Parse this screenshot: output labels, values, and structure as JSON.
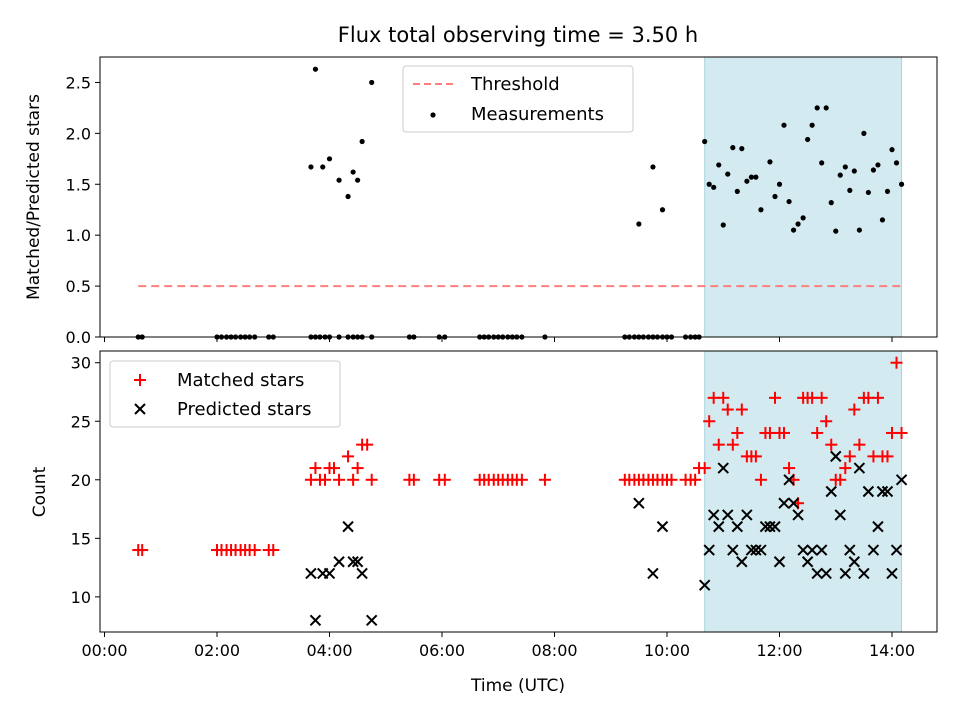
{
  "chart_data": [
    {
      "type": "scatter",
      "title": "Flux total observing time = 3.50 h",
      "xlabel": "",
      "ylabel": "Matched/Predicted stars",
      "xlim": [
        -0.08,
        14.8
      ],
      "ylim": [
        0,
        2.75
      ],
      "yticks": [
        0.0,
        0.5,
        1.0,
        1.5,
        2.0,
        2.5
      ],
      "ytick_labels": [
        "0.0",
        "0.5",
        "1.0",
        "1.5",
        "2.0",
        "2.5"
      ],
      "shaded_span": [
        10.67,
        14.17
      ],
      "shade_color": "#d3ebf0",
      "legend_loc": "upper-center",
      "series": [
        {
          "name": "Threshold",
          "kind": "dashed-line",
          "color": "#ff7f7f",
          "x": [
            0.6,
            14.17
          ],
          "y": [
            0.5,
            0.5
          ]
        },
        {
          "name": "Measurements",
          "kind": "dot",
          "color": "#000000",
          "x": [
            0.6,
            0.67,
            2.0,
            2.08,
            2.17,
            2.25,
            2.33,
            2.42,
            2.5,
            2.58,
            2.67,
            2.92,
            3.0,
            3.67,
            3.75,
            3.83,
            3.92,
            4.0,
            4.17,
            4.33,
            4.42,
            4.5,
            4.58,
            4.75,
            5.42,
            5.5,
            5.95,
            6.05,
            6.67,
            6.75,
            6.83,
            6.92,
            7.0,
            7.08,
            7.17,
            7.25,
            7.33,
            7.42,
            7.83,
            9.25,
            9.33,
            9.42,
            9.5,
            9.58,
            9.67,
            9.75,
            9.83,
            9.92,
            10.0,
            10.08,
            10.33,
            10.42,
            10.5,
            10.57,
            3.67,
            3.75,
            3.88,
            4.0,
            4.17,
            4.33,
            4.42,
            4.5,
            4.58,
            4.75,
            9.5,
            9.75,
            9.92,
            10.67,
            10.75,
            10.83,
            10.92,
            11.0,
            11.08,
            11.17,
            11.25,
            11.33,
            11.42,
            11.5,
            11.58,
            11.67,
            11.83,
            11.92,
            12.0,
            12.08,
            12.17,
            12.25,
            12.33,
            12.42,
            12.5,
            12.58,
            12.67,
            12.75,
            12.83,
            12.92,
            13.0,
            13.08,
            13.17,
            13.25,
            13.33,
            13.42,
            13.5,
            13.58,
            13.67,
            13.75,
            13.83,
            13.92,
            14.0,
            14.08,
            14.17
          ],
          "y": [
            0,
            0,
            0,
            0,
            0,
            0,
            0,
            0,
            0,
            0,
            0,
            0,
            0,
            0,
            0,
            0,
            0,
            0,
            0,
            0,
            0,
            0,
            0,
            0,
            0,
            0,
            0,
            0,
            0,
            0,
            0,
            0,
            0,
            0,
            0,
            0,
            0,
            0,
            0,
            0,
            0,
            0,
            0,
            0,
            0,
            0,
            0,
            0,
            0,
            0,
            0,
            0,
            0,
            0,
            1.67,
            2.63,
            1.67,
            1.75,
            1.54,
            1.38,
            1.62,
            1.54,
            1.92,
            2.5,
            1.11,
            1.67,
            1.25,
            1.92,
            1.5,
            1.47,
            1.69,
            1.1,
            1.6,
            1.86,
            1.43,
            1.85,
            1.53,
            1.57,
            1.57,
            1.25,
            1.72,
            1.38,
            1.5,
            2.08,
            1.33,
            1.05,
            1.11,
            1.17,
            1.94,
            2.08,
            2.25,
            1.71,
            2.25,
            1.32,
            1.04,
            1.59,
            1.67,
            1.44,
            1.63,
            1.05,
            2.0,
            1.42,
            1.64,
            1.69,
            1.15,
            1.43,
            1.84,
            1.71,
            1.5
          ]
        }
      ]
    },
    {
      "type": "scatter",
      "title": "",
      "xlabel": "Time (UTC)",
      "ylabel": "Count",
      "xlim": [
        -0.08,
        14.8
      ],
      "ylim": [
        7,
        31
      ],
      "yticks": [
        10,
        15,
        20,
        25,
        30
      ],
      "ytick_labels": [
        "10",
        "15",
        "20",
        "25",
        "30"
      ],
      "xticks": [
        0,
        2,
        4,
        6,
        8,
        10,
        12,
        14
      ],
      "xtick_labels": [
        "00:00",
        "02:00",
        "04:00",
        "06:00",
        "08:00",
        "10:00",
        "12:00",
        "14:00"
      ],
      "shaded_span": [
        10.67,
        14.17
      ],
      "shade_color": "#d3ebf0",
      "legend_loc": "upper-left",
      "series": [
        {
          "name": "Matched stars",
          "kind": "plus",
          "color": "#ff0000",
          "x": [
            0.6,
            0.67,
            2.0,
            2.08,
            2.17,
            2.25,
            2.33,
            2.42,
            2.5,
            2.58,
            2.67,
            2.92,
            3.0,
            3.67,
            3.75,
            3.83,
            3.92,
            4.0,
            4.08,
            4.17,
            4.33,
            4.42,
            4.5,
            4.58,
            4.67,
            4.75,
            5.42,
            5.5,
            5.95,
            6.05,
            6.67,
            6.75,
            6.83,
            6.92,
            7.0,
            7.08,
            7.17,
            7.25,
            7.33,
            7.42,
            7.83,
            9.25,
            9.33,
            9.42,
            9.5,
            9.58,
            9.67,
            9.75,
            9.83,
            9.92,
            10.0,
            10.08,
            10.33,
            10.42,
            10.5,
            10.57,
            10.67,
            10.75,
            10.83,
            10.92,
            11.0,
            11.08,
            11.17,
            11.25,
            11.33,
            11.42,
            11.5,
            11.58,
            11.67,
            11.75,
            11.83,
            11.92,
            12.0,
            12.08,
            12.17,
            12.25,
            12.33,
            12.42,
            12.5,
            12.58,
            12.67,
            12.75,
            12.83,
            12.92,
            13.0,
            13.08,
            13.17,
            13.25,
            13.33,
            13.42,
            13.5,
            13.58,
            13.67,
            13.75,
            13.83,
            13.92,
            14.0,
            14.08,
            14.17
          ],
          "y": [
            14,
            14,
            14,
            14,
            14,
            14,
            14,
            14,
            14,
            14,
            14,
            14,
            14,
            20,
            21,
            20,
            20,
            21,
            21,
            20,
            22,
            20,
            21,
            23,
            23,
            20,
            20,
            20,
            20,
            20,
            20,
            20,
            20,
            20,
            20,
            20,
            20,
            20,
            20,
            20,
            20,
            20,
            20,
            20,
            20,
            20,
            20,
            20,
            20,
            20,
            20,
            20,
            20,
            20,
            20,
            21,
            21,
            25,
            27,
            23,
            27,
            26,
            23,
            24,
            26,
            22,
            22,
            22,
            20,
            24,
            24,
            27,
            24,
            24,
            21,
            20,
            18,
            27,
            27,
            27,
            24,
            27,
            25,
            23,
            20,
            20,
            21,
            22,
            26,
            23,
            27,
            27,
            22,
            27,
            22,
            22,
            24,
            30,
            24
          ],
          "y_note": "values read from plot"
        },
        {
          "name": "Predicted stars",
          "kind": "x",
          "color": "#000000",
          "x": [
            3.67,
            3.75,
            3.88,
            4.0,
            4.17,
            4.33,
            4.42,
            4.5,
            4.58,
            4.75,
            9.5,
            9.75,
            9.92,
            10.67,
            10.75,
            10.83,
            10.92,
            11.0,
            11.08,
            11.17,
            11.25,
            11.33,
            11.42,
            11.5,
            11.58,
            11.67,
            11.75,
            11.83,
            11.92,
            12.0,
            12.08,
            12.17,
            12.25,
            12.33,
            12.42,
            12.5,
            12.58,
            12.67,
            12.75,
            12.83,
            12.92,
            13.0,
            13.08,
            13.17,
            13.25,
            13.33,
            13.42,
            13.5,
            13.58,
            13.67,
            13.75,
            13.83,
            13.92,
            14.0,
            14.08,
            14.17
          ],
          "y": [
            12,
            8,
            12,
            12,
            13,
            16,
            13,
            13,
            12,
            8,
            18,
            12,
            16,
            11,
            14,
            17,
            16,
            21,
            17,
            14,
            16,
            13,
            17,
            14,
            14,
            14,
            16,
            16,
            16,
            13,
            18,
            20,
            18,
            17,
            14,
            13,
            14,
            12,
            14,
            12,
            19,
            22,
            17,
            12,
            14,
            13,
            21,
            12,
            19,
            14,
            16,
            19,
            19,
            12,
            14,
            20
          ]
        }
      ]
    }
  ]
}
